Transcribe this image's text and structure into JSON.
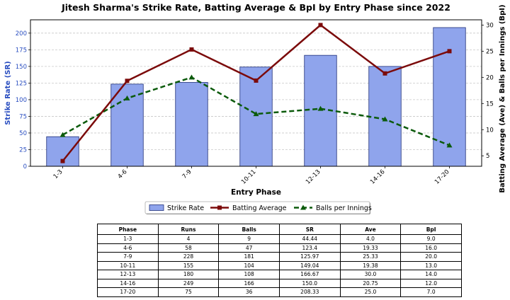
{
  "chart_data": {
    "type": "bar",
    "title": "Jitesh Sharma's Strike Rate, Batting Average & BpI by Entry Phase since 2022",
    "xlabel": "Entry Phase",
    "ylabel_left": "Strike Rate (SR)",
    "ylabel_right": "Batting Average (Ave) & Balls per Innings (BpI)",
    "categories": [
      "1-3",
      "4-6",
      "7-9",
      "10-11",
      "12-13",
      "14-16",
      "17-20"
    ],
    "ylim_left": [
      0,
      220
    ],
    "yticks_left": [
      0,
      25,
      50,
      75,
      100,
      125,
      150,
      175,
      200
    ],
    "ylim_right": [
      3,
      31
    ],
    "yticks_right": [
      5,
      10,
      15,
      20,
      25,
      30
    ],
    "grid": "y-dashed",
    "legend_position": "bottom-center",
    "series": [
      {
        "name": "Strike Rate",
        "kind": "bar",
        "axis": "left",
        "color": "#8fa4ec",
        "edge": "#1f2f7a",
        "values": [
          44.44,
          123.4,
          125.97,
          149.04,
          166.67,
          150.0,
          208.33
        ]
      },
      {
        "name": "Batting Average",
        "kind": "line",
        "axis": "right",
        "color": "#7b0a0a",
        "marker": "square",
        "values": [
          4.0,
          19.33,
          25.33,
          19.38,
          30.0,
          20.75,
          25.0
        ]
      },
      {
        "name": "Balls per Innings",
        "kind": "line",
        "axis": "right",
        "color": "#0b5a0b",
        "marker": "triangle",
        "dash": true,
        "values": [
          9.0,
          16.0,
          20.0,
          13.0,
          14.0,
          12.0,
          7.0
        ]
      }
    ]
  },
  "table": {
    "headers": [
      "Phase",
      "Runs",
      "Balls",
      "SR",
      "Ave",
      "BpI"
    ],
    "rows": [
      [
        "1-3",
        "4",
        "9",
        "44.44",
        "4.0",
        "9.0"
      ],
      [
        "4-6",
        "58",
        "47",
        "123.4",
        "19.33",
        "16.0"
      ],
      [
        "7-9",
        "228",
        "181",
        "125.97",
        "25.33",
        "20.0"
      ],
      [
        "10-11",
        "155",
        "104",
        "149.04",
        "19.38",
        "13.0"
      ],
      [
        "12-13",
        "180",
        "108",
        "166.67",
        "30.0",
        "14.0"
      ],
      [
        "14-16",
        "249",
        "166",
        "150.0",
        "20.75",
        "12.0"
      ],
      [
        "17-20",
        "75",
        "36",
        "208.33",
        "25.0",
        "7.0"
      ]
    ]
  }
}
